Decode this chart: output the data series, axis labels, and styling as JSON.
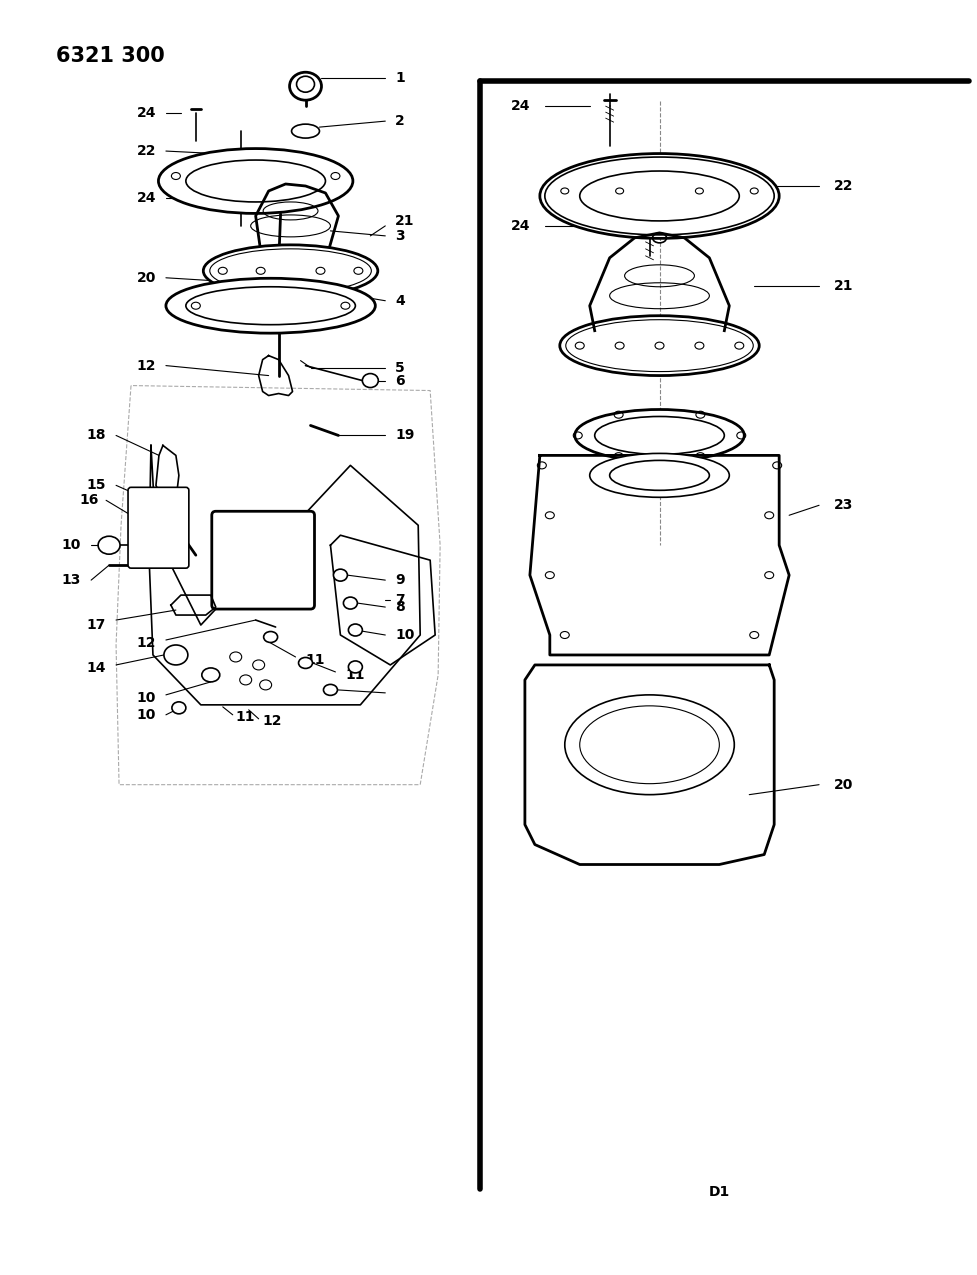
{
  "title": "6321 300",
  "background_color": "#ffffff",
  "line_color": "#000000",
  "fig_width": 9.77,
  "fig_height": 12.75,
  "dpi": 100,
  "label_fontsize": 10,
  "title_fontsize": 15,
  "d1_label": "D1"
}
